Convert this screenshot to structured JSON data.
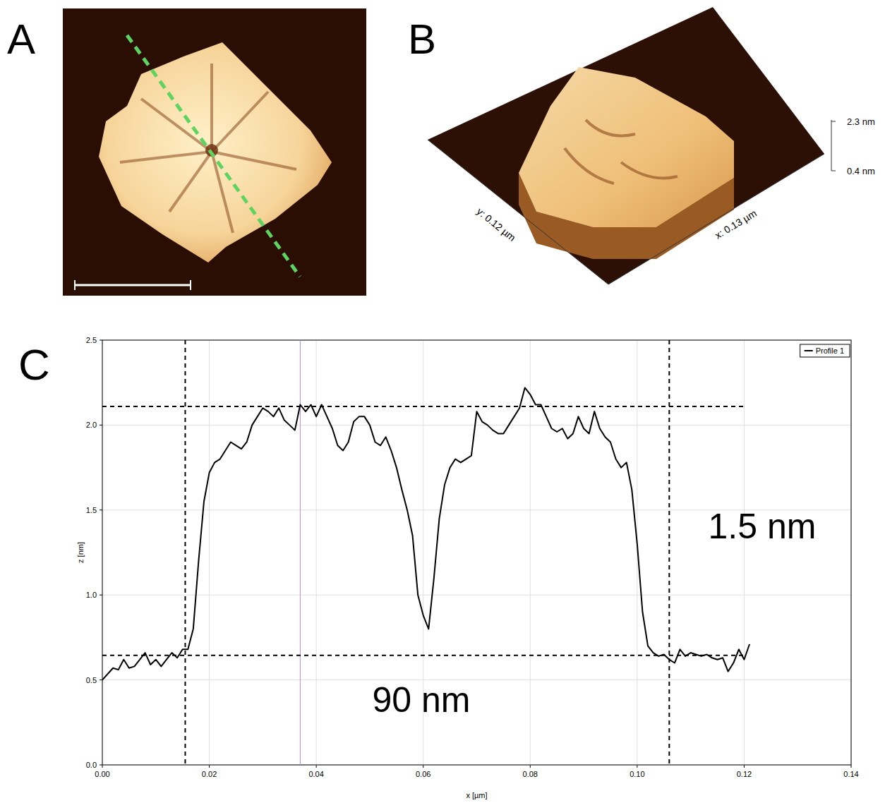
{
  "panel_a": {
    "label": "A"
  },
  "panel_b": {
    "label": "B",
    "y_label": "y: 0.12 µm",
    "x_label": "x: 0.13 µm",
    "z_labels": [
      "2.3 nm",
      "0.4 nm"
    ]
  },
  "chart_data": {
    "type": "line",
    "label": "C",
    "x_label": "x [µm]",
    "y_label": "z [nm]",
    "xlim": [
      0,
      0.14
    ],
    "ylim": [
      0,
      2.5
    ],
    "xticks": [
      {
        "value": 0,
        "label": "0.00"
      },
      {
        "value": 0.02,
        "label": "0.02"
      },
      {
        "value": 0.04,
        "label": "0.04"
      },
      {
        "value": 0.06,
        "label": "0.06"
      },
      {
        "value": 0.08,
        "label": "0.08"
      },
      {
        "value": 0.1,
        "label": "0.10"
      },
      {
        "value": 0.12,
        "label": "0.12"
      },
      {
        "value": 0.14,
        "label": "0.14"
      }
    ],
    "yticks": [
      {
        "value": 0,
        "label": "0.0"
      },
      0.5,
      {
        "value": 1,
        "label": "1.0"
      },
      1.5,
      {
        "value": 2,
        "label": "2.0"
      },
      2.5
    ],
    "grid": true,
    "legend": "upper right",
    "x": [
      0,
      0.002,
      0.003,
      0.004,
      0.005,
      0.006,
      0.008,
      0.009,
      0.01,
      0.011,
      0.012,
      0.013,
      0.014,
      0.015,
      0.016,
      0.017,
      0.018,
      0.019,
      0.02,
      0.021,
      0.022,
      0.023,
      0.024,
      0.025,
      0.026,
      0.027,
      0.028,
      0.029,
      0.03,
      0.031,
      0.032,
      0.033,
      0.034,
      0.035,
      0.036,
      0.037,
      0.038,
      0.039,
      0.04,
      0.041,
      0.042,
      0.043,
      0.044,
      0.045,
      0.046,
      0.047,
      0.048,
      0.049,
      0.05,
      0.051,
      0.052,
      0.053,
      0.054,
      0.055,
      0.056,
      0.057,
      0.058,
      0.059,
      0.06,
      0.061,
      0.062,
      0.063,
      0.064,
      0.065,
      0.066,
      0.067,
      0.068,
      0.069,
      0.07,
      0.071,
      0.072,
      0.073,
      0.074,
      0.075,
      0.076,
      0.077,
      0.078,
      0.079,
      0.08,
      0.081,
      0.082,
      0.083,
      0.084,
      0.085,
      0.086,
      0.087,
      0.088,
      0.089,
      0.09,
      0.091,
      0.092,
      0.093,
      0.094,
      0.095,
      0.096,
      0.097,
      0.098,
      0.099,
      0.1,
      0.101,
      0.102,
      0.103,
      0.104,
      0.105,
      0.106,
      0.107,
      0.108,
      0.109,
      0.11,
      0.111,
      0.112,
      0.113,
      0.114,
      0.115,
      0.116,
      0.117,
      0.118,
      0.119,
      0.12,
      0.121
    ],
    "series": [
      {
        "name": "Profile 1",
        "color": "#000000",
        "values": [
          0.5,
          0.57,
          0.56,
          0.62,
          0.57,
          0.58,
          0.66,
          0.59,
          0.62,
          0.58,
          0.62,
          0.66,
          0.63,
          0.68,
          0.68,
          0.8,
          1.2,
          1.55,
          1.72,
          1.78,
          1.8,
          1.85,
          1.9,
          1.88,
          1.86,
          1.9,
          2.0,
          2.05,
          2.1,
          2.08,
          2.05,
          2.1,
          2.03,
          2.0,
          1.97,
          2.12,
          2.08,
          2.12,
          2.05,
          2.12,
          2.05,
          1.98,
          1.88,
          1.85,
          1.9,
          2.02,
          2.05,
          2.05,
          2.0,
          1.9,
          1.88,
          1.93,
          1.85,
          1.75,
          1.62,
          1.5,
          1.35,
          1.0,
          0.88,
          0.8,
          1.1,
          1.45,
          1.65,
          1.75,
          1.8,
          1.78,
          1.8,
          1.82,
          2.08,
          2.02,
          2.0,
          1.97,
          1.95,
          1.95,
          2.0,
          2.05,
          2.1,
          2.22,
          2.18,
          2.12,
          2.12,
          2.05,
          1.98,
          1.96,
          1.98,
          1.92,
          1.95,
          2.05,
          1.98,
          1.95,
          2.08,
          1.98,
          1.93,
          1.9,
          1.8,
          1.75,
          1.78,
          1.62,
          1.3,
          0.9,
          0.7,
          0.66,
          0.64,
          0.65,
          0.62,
          0.6,
          0.68,
          0.64,
          0.66,
          0.65,
          0.64,
          0.65,
          0.63,
          0.62,
          0.63,
          0.55,
          0.6,
          0.68,
          0.62,
          0.71
        ]
      }
    ],
    "guides": {
      "h": [
        2.11,
        0.645
      ],
      "v": [
        0.0155,
        0.106
      ],
      "cursor": 0.037
    },
    "annotations": [
      "1.5 nm",
      "90 nm"
    ]
  }
}
